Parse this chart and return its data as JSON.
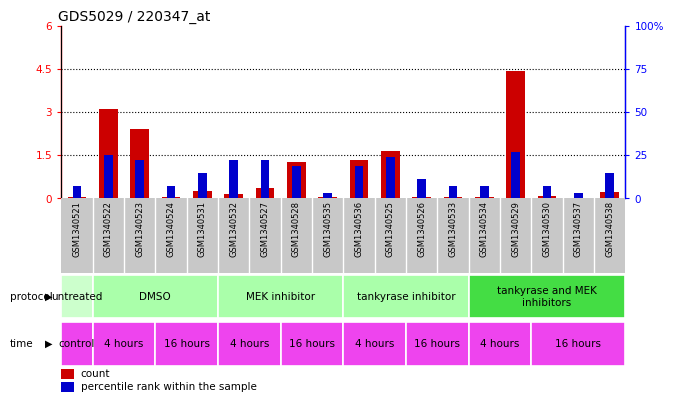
{
  "title": "GDS5029 / 220347_at",
  "samples": [
    "GSM1340521",
    "GSM1340522",
    "GSM1340523",
    "GSM1340524",
    "GSM1340531",
    "GSM1340532",
    "GSM1340527",
    "GSM1340528",
    "GSM1340535",
    "GSM1340536",
    "GSM1340525",
    "GSM1340526",
    "GSM1340533",
    "GSM1340534",
    "GSM1340529",
    "GSM1340530",
    "GSM1340537",
    "GSM1340538"
  ],
  "red_values": [
    0.05,
    3.1,
    2.4,
    0.05,
    0.27,
    0.15,
    0.38,
    1.26,
    0.05,
    1.32,
    1.65,
    0.05,
    0.05,
    0.05,
    4.42,
    0.08,
    0.03,
    0.22
  ],
  "blue_values_pct": [
    7,
    25,
    22,
    7,
    15,
    22,
    22,
    19,
    3,
    19,
    24,
    11,
    7,
    7,
    27,
    7,
    3,
    15
  ],
  "ylim_left": [
    0,
    6
  ],
  "ylim_right": [
    0,
    100
  ],
  "yticks_left": [
    0,
    1.5,
    3.0,
    4.5,
    6.0
  ],
  "yticks_right": [
    0,
    25,
    50,
    75,
    100
  ],
  "left_tick_labels": [
    "0",
    "1.5",
    "3",
    "4.5",
    "6"
  ],
  "right_tick_labels": [
    "0",
    "25",
    "50",
    "75",
    "100%"
  ],
  "hlines": [
    1.5,
    3.0,
    4.5
  ],
  "proto_groups": [
    {
      "label": "untreated",
      "start": 0,
      "end": 0,
      "color": "#ccffcc"
    },
    {
      "label": "DMSO",
      "start": 1,
      "end": 4,
      "color": "#aaffaa"
    },
    {
      "label": "MEK inhibitor",
      "start": 5,
      "end": 8,
      "color": "#aaffaa"
    },
    {
      "label": "tankyrase inhibitor",
      "start": 9,
      "end": 12,
      "color": "#aaffaa"
    },
    {
      "label": "tankyrase and MEK\ninhibitors",
      "start": 13,
      "end": 17,
      "color": "#44dd44"
    }
  ],
  "time_groups": [
    {
      "label": "control",
      "start": 0,
      "end": 0
    },
    {
      "label": "4 hours",
      "start": 1,
      "end": 2
    },
    {
      "label": "16 hours",
      "start": 3,
      "end": 4
    },
    {
      "label": "4 hours",
      "start": 5,
      "end": 6
    },
    {
      "label": "16 hours",
      "start": 7,
      "end": 8
    },
    {
      "label": "4 hours",
      "start": 9,
      "end": 10
    },
    {
      "label": "16 hours",
      "start": 11,
      "end": 12
    },
    {
      "label": "4 hours",
      "start": 13,
      "end": 14
    },
    {
      "label": "16 hours",
      "start": 15,
      "end": 17
    }
  ],
  "time_color": "#ee44ee",
  "red_color": "#cc0000",
  "blue_color": "#0000cc",
  "gray_bg": "#c8c8c8",
  "title_fontsize": 10,
  "tick_fontsize": 7.5,
  "anno_fontsize": 7.5,
  "sample_fontsize": 6,
  "legend_fontsize": 7.5
}
